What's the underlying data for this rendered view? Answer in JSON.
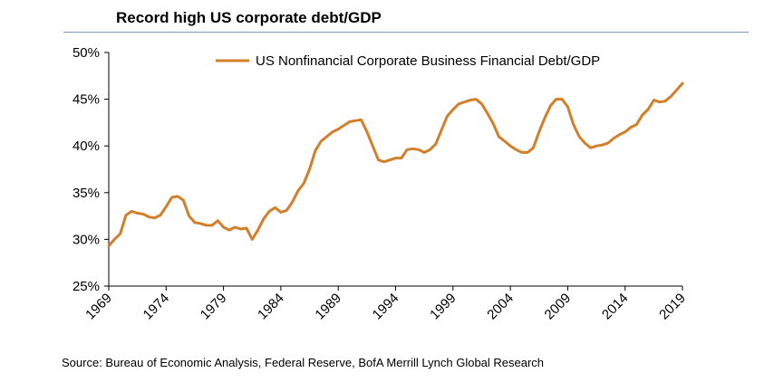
{
  "chart_data": {
    "type": "line",
    "title": "Record high US corporate debt/GDP",
    "xlabel": "",
    "ylabel": "",
    "xlim": [
      1969,
      2019
    ],
    "ylim": [
      25,
      50
    ],
    "y_ticks": [
      "25%",
      "30%",
      "35%",
      "40%",
      "45%",
      "50%"
    ],
    "x_ticks": [
      "1969",
      "1974",
      "1979",
      "1984",
      "1989",
      "1994",
      "1999",
      "2004",
      "2009",
      "2014",
      "2019"
    ],
    "legend_position": "top-center",
    "grid": false,
    "color": "#d37f2a",
    "series": [
      {
        "name": "US Nonfinancial Corporate Business Financial Debt/GDP",
        "x": [
          1969.0,
          1969.5,
          1970.0,
          1970.5,
          1971.0,
          1971.5,
          1972.0,
          1972.5,
          1973.0,
          1973.5,
          1974.0,
          1974.5,
          1975.0,
          1975.5,
          1976.0,
          1976.5,
          1977.0,
          1977.5,
          1978.0,
          1978.5,
          1979.0,
          1979.5,
          1980.0,
          1980.5,
          1981.0,
          1981.5,
          1982.0,
          1982.5,
          1983.0,
          1983.5,
          1984.0,
          1984.5,
          1985.0,
          1985.5,
          1986.0,
          1986.5,
          1987.0,
          1987.5,
          1988.0,
          1988.5,
          1989.0,
          1989.5,
          1990.0,
          1990.5,
          1991.0,
          1991.5,
          1992.0,
          1992.5,
          1993.0,
          1993.5,
          1994.0,
          1994.5,
          1995.0,
          1995.5,
          1996.0,
          1996.5,
          1997.0,
          1997.5,
          1998.0,
          1998.5,
          1999.0,
          1999.5,
          2000.0,
          2000.5,
          2001.0,
          2001.5,
          2002.0,
          2002.5,
          2003.0,
          2003.5,
          2004.0,
          2004.5,
          2005.0,
          2005.5,
          2006.0,
          2006.5,
          2007.0,
          2007.5,
          2008.0,
          2008.5,
          2009.0,
          2009.5,
          2010.0,
          2010.5,
          2011.0,
          2011.5,
          2012.0,
          2012.5,
          2013.0,
          2013.5,
          2014.0,
          2014.5,
          2015.0,
          2015.5,
          2016.0,
          2016.5,
          2017.0,
          2017.5,
          2018.0,
          2018.5,
          2019.0
        ],
        "values": [
          29.3,
          30.0,
          30.6,
          32.6,
          33.0,
          32.8,
          32.7,
          32.4,
          32.3,
          32.6,
          33.5,
          34.5,
          34.6,
          34.2,
          32.5,
          31.8,
          31.7,
          31.5,
          31.5,
          32.0,
          31.3,
          31.0,
          31.3,
          31.1,
          31.2,
          30.0,
          31.0,
          32.2,
          33.0,
          33.4,
          32.9,
          33.1,
          34.0,
          35.2,
          36.0,
          37.5,
          39.5,
          40.5,
          41.0,
          41.5,
          41.8,
          42.2,
          42.6,
          42.7,
          42.8,
          41.5,
          40.0,
          38.5,
          38.3,
          38.5,
          38.7,
          38.7,
          39.6,
          39.7,
          39.6,
          39.3,
          39.6,
          40.2,
          41.7,
          43.2,
          43.9,
          44.5,
          44.7,
          44.9,
          45.0,
          44.5,
          43.5,
          42.4,
          41.0,
          40.5,
          40.0,
          39.6,
          39.3,
          39.3,
          39.8,
          41.5,
          43.0,
          44.3,
          45.0,
          45.0,
          44.2,
          42.3,
          41.0,
          40.3,
          39.8,
          40.0,
          40.1,
          40.3,
          40.8,
          41.2,
          41.5,
          42.0,
          42.3,
          43.3,
          43.9,
          44.9,
          44.7,
          44.8,
          45.3,
          46.0,
          46.7
        ]
      }
    ]
  },
  "footer": {
    "source": "Source: Bureau of Economic Analysis, Federal Reserve, BofA Merrill Lynch Global Research"
  }
}
